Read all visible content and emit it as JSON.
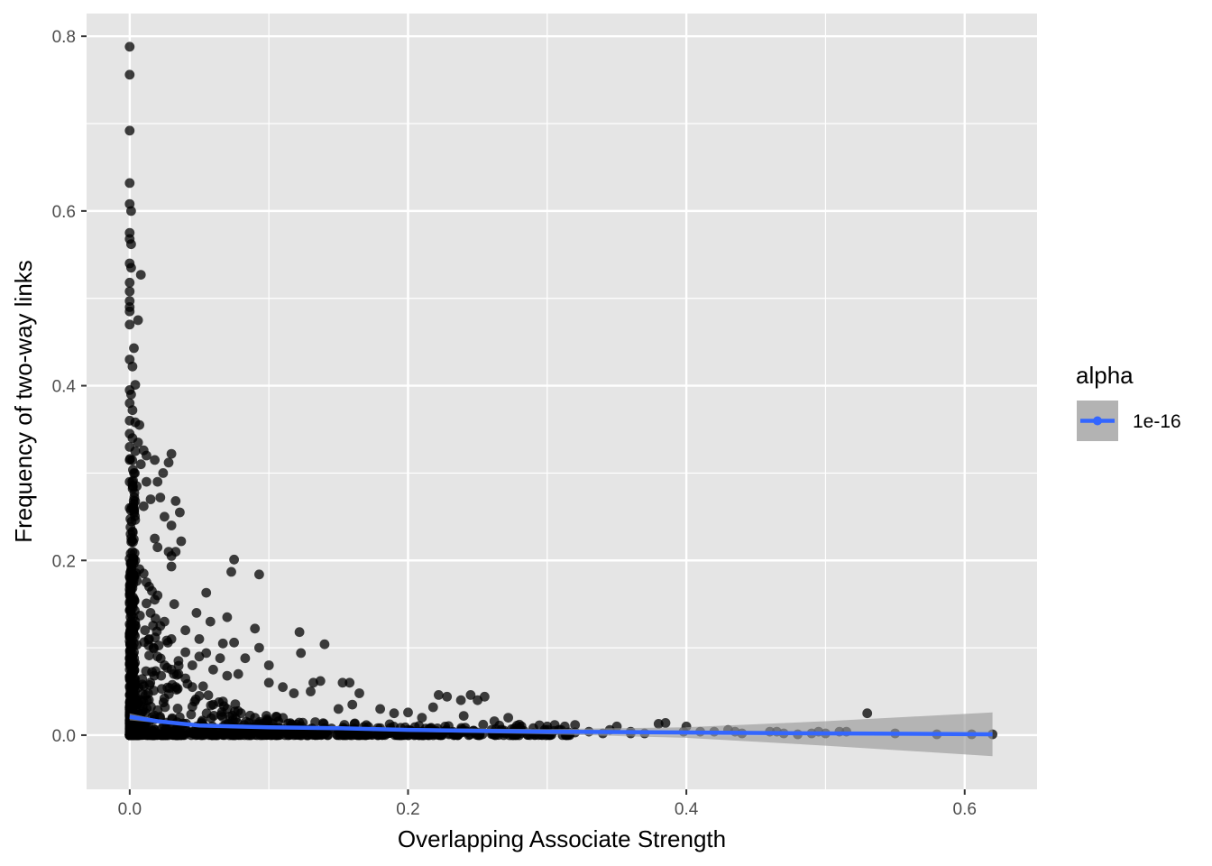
{
  "chart_data": {
    "type": "scatter",
    "xlabel": "Overlapping Associate Strength",
    "ylabel": "Frequency of two-way links",
    "xlim": [
      -0.031,
      0.652
    ],
    "ylim": [
      -0.062,
      0.826
    ],
    "x_ticks": [
      0.0,
      0.2,
      0.4,
      0.6
    ],
    "x_tick_labels": [
      "0.0",
      "0.2",
      "0.4",
      "0.6"
    ],
    "y_ticks": [
      0.0,
      0.2,
      0.4,
      0.6,
      0.8
    ],
    "y_tick_labels": [
      "0.0",
      "0.2",
      "0.4",
      "0.6",
      "0.8"
    ],
    "grid": true,
    "legend": {
      "title": "alpha",
      "position": "right",
      "entries": [
        {
          "label": "1e-16",
          "line_color": "#3366FF",
          "band_color": "#b3b3b3"
        }
      ]
    },
    "colors": {
      "panel": "#e5e5e5",
      "grid": "#ffffff",
      "points": "#000000",
      "smooth_line": "#3366FF",
      "confidence_band": "#999999"
    },
    "point_alpha": 0.75,
    "series": [
      {
        "kind": "points",
        "points": [
          [
            0.0,
            0.788
          ],
          [
            0.0,
            0.756
          ],
          [
            0.0,
            0.692
          ],
          [
            0.0,
            0.632
          ],
          [
            0.0,
            0.608
          ],
          [
            0.001,
            0.6
          ],
          [
            0.0,
            0.575
          ],
          [
            0.0,
            0.568
          ],
          [
            0.001,
            0.562
          ],
          [
            0.0,
            0.54
          ],
          [
            0.001,
            0.535
          ],
          [
            0.008,
            0.527
          ],
          [
            0.0,
            0.518
          ],
          [
            0.0,
            0.508
          ],
          [
            0.0,
            0.497
          ],
          [
            0.0,
            0.49
          ],
          [
            0.0,
            0.485
          ],
          [
            0.006,
            0.475
          ],
          [
            0.0,
            0.47
          ],
          [
            0.003,
            0.443
          ],
          [
            0.0,
            0.43
          ],
          [
            0.002,
            0.422
          ],
          [
            0.004,
            0.401
          ],
          [
            0.0,
            0.395
          ],
          [
            0.001,
            0.39
          ],
          [
            0.0,
            0.38
          ],
          [
            0.002,
            0.372
          ],
          [
            0.0,
            0.36
          ],
          [
            0.004,
            0.358
          ],
          [
            0.007,
            0.355
          ],
          [
            0.0,
            0.345
          ],
          [
            0.002,
            0.34
          ],
          [
            0.006,
            0.335
          ],
          [
            0.0,
            0.33
          ],
          [
            0.004,
            0.325
          ],
          [
            0.01,
            0.326
          ],
          [
            0.0,
            0.315
          ],
          [
            0.012,
            0.32
          ],
          [
            0.003,
            0.3
          ],
          [
            0.008,
            0.31
          ],
          [
            0.018,
            0.315
          ],
          [
            0.03,
            0.322
          ],
          [
            0.028,
            0.312
          ],
          [
            0.024,
            0.3
          ],
          [
            0.0,
            0.29
          ],
          [
            0.005,
            0.285
          ],
          [
            0.012,
            0.29
          ],
          [
            0.02,
            0.29
          ],
          [
            0.015,
            0.27
          ],
          [
            0.022,
            0.272
          ],
          [
            0.033,
            0.268
          ],
          [
            0.036,
            0.255
          ],
          [
            0.03,
            0.24
          ],
          [
            0.025,
            0.25
          ],
          [
            0.0,
            0.26
          ],
          [
            0.01,
            0.262
          ],
          [
            0.018,
            0.225
          ],
          [
            0.028,
            0.21
          ],
          [
            0.033,
            0.21
          ],
          [
            0.037,
            0.222
          ],
          [
            0.02,
            0.215
          ],
          [
            0.03,
            0.205
          ],
          [
            0.03,
            0.193
          ],
          [
            0.075,
            0.201
          ],
          [
            0.073,
            0.187
          ],
          [
            0.093,
            0.184
          ],
          [
            0.004,
            0.2
          ],
          [
            0.007,
            0.19
          ],
          [
            0.01,
            0.185
          ],
          [
            0.012,
            0.175
          ],
          [
            0.014,
            0.17
          ],
          [
            0.016,
            0.165
          ],
          [
            0.02,
            0.16
          ],
          [
            0.018,
            0.155
          ],
          [
            0.032,
            0.15
          ],
          [
            0.055,
            0.163
          ],
          [
            0.048,
            0.14
          ],
          [
            0.058,
            0.13
          ],
          [
            0.07,
            0.135
          ],
          [
            0.09,
            0.122
          ],
          [
            0.122,
            0.118
          ],
          [
            0.14,
            0.104
          ],
          [
            0.123,
            0.094
          ],
          [
            0.093,
            0.1
          ],
          [
            0.075,
            0.106
          ],
          [
            0.067,
            0.105
          ],
          [
            0.055,
            0.094
          ],
          [
            0.05,
            0.09
          ],
          [
            0.065,
            0.088
          ],
          [
            0.083,
            0.088
          ],
          [
            0.1,
            0.08
          ],
          [
            0.078,
            0.07
          ],
          [
            0.07,
            0.068
          ],
          [
            0.06,
            0.075
          ],
          [
            0.045,
            0.08
          ],
          [
            0.035,
            0.085
          ],
          [
            0.03,
            0.11
          ],
          [
            0.04,
            0.12
          ],
          [
            0.025,
            0.13
          ],
          [
            0.015,
            0.14
          ],
          [
            0.022,
            0.125
          ],
          [
            0.05,
            0.11
          ],
          [
            0.04,
            0.095
          ],
          [
            0.1,
            0.06
          ],
          [
            0.11,
            0.055
          ],
          [
            0.132,
            0.06
          ],
          [
            0.137,
            0.062
          ],
          [
            0.153,
            0.06
          ],
          [
            0.158,
            0.06
          ],
          [
            0.165,
            0.048
          ],
          [
            0.118,
            0.048
          ],
          [
            0.13,
            0.05
          ],
          [
            0.15,
            0.03
          ],
          [
            0.16,
            0.035
          ],
          [
            0.18,
            0.03
          ],
          [
            0.19,
            0.025
          ],
          [
            0.2,
            0.026
          ],
          [
            0.21,
            0.02
          ],
          [
            0.218,
            0.032
          ],
          [
            0.222,
            0.046
          ],
          [
            0.228,
            0.044
          ],
          [
            0.238,
            0.04
          ],
          [
            0.245,
            0.046
          ],
          [
            0.25,
            0.04
          ],
          [
            0.255,
            0.044
          ],
          [
            0.24,
            0.022
          ],
          [
            0.262,
            0.016
          ],
          [
            0.272,
            0.02
          ],
          [
            0.28,
            0.012
          ],
          [
            0.3,
            0.01
          ],
          [
            0.29,
            0.008
          ],
          [
            0.31,
            0.006
          ],
          [
            0.33,
            0.004
          ],
          [
            0.35,
            0.01
          ],
          [
            0.345,
            0.006
          ],
          [
            0.36,
            0.004
          ],
          [
            0.38,
            0.013
          ],
          [
            0.385,
            0.014
          ],
          [
            0.4,
            0.01
          ],
          [
            0.398,
            0.004
          ],
          [
            0.41,
            0.004
          ],
          [
            0.42,
            0.004
          ],
          [
            0.43,
            0.006
          ],
          [
            0.435,
            0.004
          ],
          [
            0.44,
            0.002
          ],
          [
            0.46,
            0.004
          ],
          [
            0.465,
            0.004
          ],
          [
            0.47,
            0.002
          ],
          [
            0.48,
            0.001
          ],
          [
            0.49,
            0.002
          ],
          [
            0.495,
            0.004
          ],
          [
            0.5,
            0.002
          ],
          [
            0.51,
            0.004
          ],
          [
            0.515,
            0.004
          ],
          [
            0.53,
            0.025
          ],
          [
            0.55,
            0.002
          ],
          [
            0.58,
            0.001
          ],
          [
            0.605,
            0.001
          ],
          [
            0.62,
            0.001
          ],
          [
            0.18,
            0.008
          ],
          [
            0.2,
            0.006
          ],
          [
            0.22,
            0.005
          ],
          [
            0.24,
            0.004
          ],
          [
            0.26,
            0.006
          ],
          [
            0.28,
            0.004
          ],
          [
            0.32,
            0.003
          ],
          [
            0.34,
            0.002
          ],
          [
            0.36,
            0.002
          ],
          [
            0.37,
            0.002
          ],
          [
            0.29,
            0.002
          ],
          [
            0.27,
            0.002
          ],
          [
            0.25,
            0.003
          ],
          [
            0.23,
            0.002
          ],
          [
            0.21,
            0.004
          ],
          [
            0.19,
            0.003
          ],
          [
            0.17,
            0.004
          ],
          [
            0.15,
            0.005
          ],
          [
            0.14,
            0.008
          ],
          [
            0.12,
            0.012
          ],
          [
            0.1,
            0.015
          ],
          [
            0.09,
            0.02
          ],
          [
            0.08,
            0.025
          ],
          [
            0.07,
            0.03
          ],
          [
            0.06,
            0.035
          ],
          [
            0.05,
            0.045
          ],
          [
            0.045,
            0.055
          ],
          [
            0.04,
            0.065
          ],
          [
            0.035,
            0.07
          ],
          [
            0.03,
            0.075
          ],
          [
            0.025,
            0.08
          ],
          [
            0.02,
            0.09
          ],
          [
            0.017,
            0.1
          ],
          [
            0.014,
            0.11
          ],
          [
            0.011,
            0.12
          ]
        ]
      },
      {
        "kind": "smooth",
        "name": "1e-16",
        "x": [
          0.0,
          0.02,
          0.05,
          0.1,
          0.15,
          0.2,
          0.3,
          0.4,
          0.5,
          0.62
        ],
        "y": [
          0.021,
          0.016,
          0.011,
          0.009,
          0.008,
          0.006,
          0.004,
          0.003,
          0.002,
          0.001
        ],
        "band_half_width": [
          0.004,
          0.002,
          0.0015,
          0.0015,
          0.002,
          0.002,
          0.003,
          0.006,
          0.014,
          0.025
        ]
      }
    ]
  }
}
